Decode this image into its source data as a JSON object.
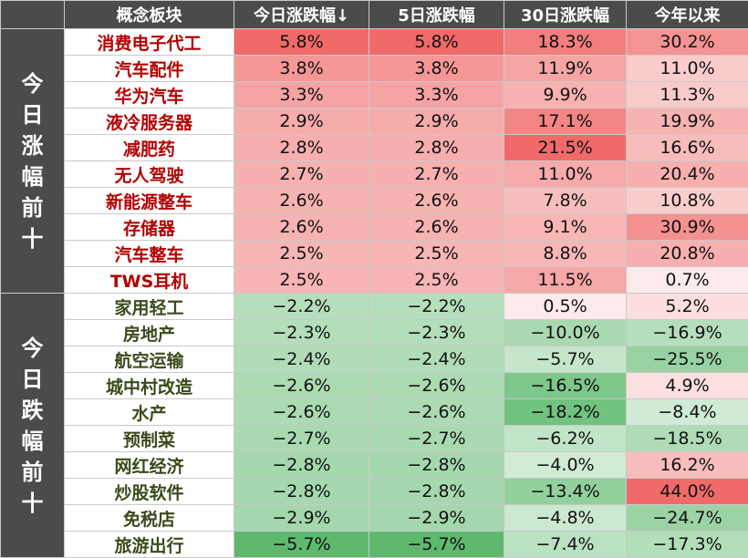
{
  "columns": [
    "",
    "概念板块",
    "今日涨跌幅↓",
    "5日涨跌幅",
    "30日涨跌幅",
    "今年以来"
  ],
  "groups": [
    {
      "label": "今日涨幅前十",
      "row_count": 10
    },
    {
      "label": "今日跌幅前十",
      "row_count": 10
    }
  ],
  "chart_data": {
    "type": "table",
    "headers": [
      "概念板块",
      "今日涨跌幅↓",
      "5日涨跌幅",
      "30日涨跌幅",
      "今年以来"
    ],
    "rows": [
      [
        "消费电子代工",
        "5.8%",
        "5.8%",
        "18.3%",
        "30.2%"
      ],
      [
        "汽车配件",
        "3.8%",
        "3.8%",
        "11.9%",
        "11.0%"
      ],
      [
        "华为汽车",
        "3.3%",
        "3.3%",
        "9.9%",
        "11.3%"
      ],
      [
        "液冷服务器",
        "2.9%",
        "2.9%",
        "17.1%",
        "19.9%"
      ],
      [
        "减肥药",
        "2.8%",
        "2.8%",
        "21.5%",
        "16.6%"
      ],
      [
        "无人驾驶",
        "2.7%",
        "2.7%",
        "11.0%",
        "20.4%"
      ],
      [
        "新能源整车",
        "2.6%",
        "2.6%",
        "7.8%",
        "10.8%"
      ],
      [
        "存储器",
        "2.6%",
        "2.6%",
        "9.1%",
        "30.9%"
      ],
      [
        "汽车整车",
        "2.5%",
        "2.5%",
        "8.8%",
        "20.8%"
      ],
      [
        "TWS耳机",
        "2.5%",
        "2.5%",
        "11.5%",
        "0.7%"
      ],
      [
        "家用轻工",
        "−2.2%",
        "−2.2%",
        "0.5%",
        "5.2%"
      ],
      [
        "房地产",
        "−2.3%",
        "−2.3%",
        "−10.0%",
        "−16.9%"
      ],
      [
        "航空运输",
        "−2.4%",
        "−2.4%",
        "−5.7%",
        "−25.5%"
      ],
      [
        "城中村改造",
        "−2.6%",
        "−2.6%",
        "−16.5%",
        "4.9%"
      ],
      [
        "水产",
        "−2.6%",
        "−2.6%",
        "−18.2%",
        "−8.4%"
      ],
      [
        "预制菜",
        "−2.7%",
        "−2.7%",
        "−6.2%",
        "−18.5%"
      ],
      [
        "网红经济",
        "−2.8%",
        "−2.8%",
        "−4.0%",
        "16.2%"
      ],
      [
        "炒股软件",
        "−2.8%",
        "−2.8%",
        "−13.4%",
        "44.0%"
      ],
      [
        "免税店",
        "−2.9%",
        "−2.9%",
        "−4.8%",
        "−24.7%"
      ],
      [
        "旅游出行",
        "−5.7%",
        "−5.7%",
        "−7.4%",
        "−17.3%"
      ]
    ]
  },
  "colors": {
    "header_bg": "#4b4b4b",
    "header_text": "#ffffff",
    "gainer_name": "#b30000",
    "loser_name": "#3a4a1a",
    "positive_strong": "#f06a6a",
    "negative_strong": "#5cb86c",
    "neutral": "#ffffff"
  }
}
